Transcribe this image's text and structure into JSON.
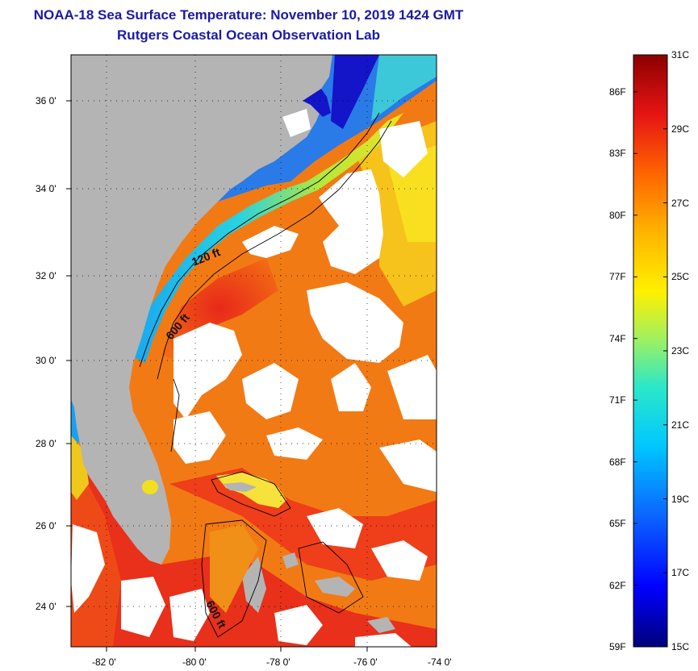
{
  "header": {
    "title": "NOAA-18 Sea Surface Temperature:  November 10, 2019 1424 GMT",
    "subtitle": "Rutgers Coastal Ocean Observation Lab"
  },
  "map": {
    "region": "US Southeast coast, Florida and Bahamas",
    "lat_ticks": [
      "36 0'",
      "34 0'",
      "32 0'",
      "30 0'",
      "28 0'",
      "26 0'",
      "24 0'"
    ],
    "lon_ticks": [
      "-82 0'",
      "-80 0'",
      "-78 0'",
      "-76 0'",
      "-74 0'"
    ],
    "isobath_labels": [
      "120 ft",
      "600 ft",
      "600 ft"
    ],
    "colors": {
      "land": "#b4b4b4",
      "cloud": "#ffffff",
      "warm": "#e8341a",
      "gulf_stream": "#f27a14",
      "cool": "#20b4ef"
    }
  },
  "colorbar": {
    "celsius": [
      "31C",
      "29C",
      "27C",
      "25C",
      "23C",
      "21C",
      "19C",
      "17C",
      "15C"
    ],
    "fahrenheit": [
      "86F",
      "83F",
      "80F",
      "77F",
      "74F",
      "71F",
      "68F",
      "65F",
      "62F",
      "59F"
    ],
    "range_c": [
      15,
      31
    ],
    "colors": [
      "#00007a",
      "#0000ff",
      "#0a64ff",
      "#00c8ff",
      "#2ce8c8",
      "#a0f060",
      "#fff000",
      "#ffb400",
      "#ff6400",
      "#e61414",
      "#8c0000"
    ]
  }
}
